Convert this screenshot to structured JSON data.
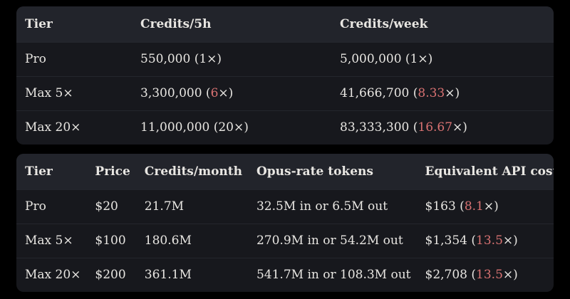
{
  "colors": {
    "page-bg": "#000000",
    "row-bg": "#17181d",
    "header-bg": "#22242b",
    "text": "#e8e6e2",
    "accent-red": "#d97272",
    "divider": "#24262c"
  },
  "credits_table": {
    "columns": [
      "Tier",
      "Credits/5h",
      "Credits/week"
    ],
    "rows": [
      {
        "tier": "Pro",
        "per_5h": {
          "pre": "550,000 (1×)",
          "accent": "",
          "post": ""
        },
        "per_week": {
          "pre": "5,000,000 (1×)",
          "accent": "",
          "post": ""
        }
      },
      {
        "tier": "Max 5×",
        "per_5h": {
          "pre": "3,300,000 (",
          "accent": "6",
          "post": "×)"
        },
        "per_week": {
          "pre": "41,666,700 (",
          "accent": "8.33",
          "post": "×)"
        }
      },
      {
        "tier": "Max 20×",
        "per_5h": {
          "pre": "11,000,000 (20×)",
          "accent": "",
          "post": ""
        },
        "per_week": {
          "pre": "83,333,300 (",
          "accent": "16.67",
          "post": "×)"
        }
      }
    ]
  },
  "value_table": {
    "columns": [
      "Tier",
      "Price",
      "Credits/month",
      "Opus-rate tokens",
      "Equivalent API cost"
    ],
    "rows": [
      {
        "tier": "Pro",
        "price": "$20",
        "credits_month": "21.7M",
        "opus_tokens": "32.5M in or 6.5M out",
        "api_cost": {
          "pre": "$163 (",
          "accent": "8.1",
          "post": "×)"
        }
      },
      {
        "tier": "Max 5×",
        "price": "$100",
        "credits_month": "180.6M",
        "opus_tokens": "270.9M in or 54.2M out",
        "api_cost": {
          "pre": "$1,354 (",
          "accent": "13.5",
          "post": "×)"
        }
      },
      {
        "tier": "Max 20×",
        "price": "$200",
        "credits_month": "361.1M",
        "opus_tokens": "541.7M in or 108.3M out",
        "api_cost": {
          "pre": "$2,708 (",
          "accent": "13.5",
          "post": "×)"
        }
      }
    ]
  }
}
